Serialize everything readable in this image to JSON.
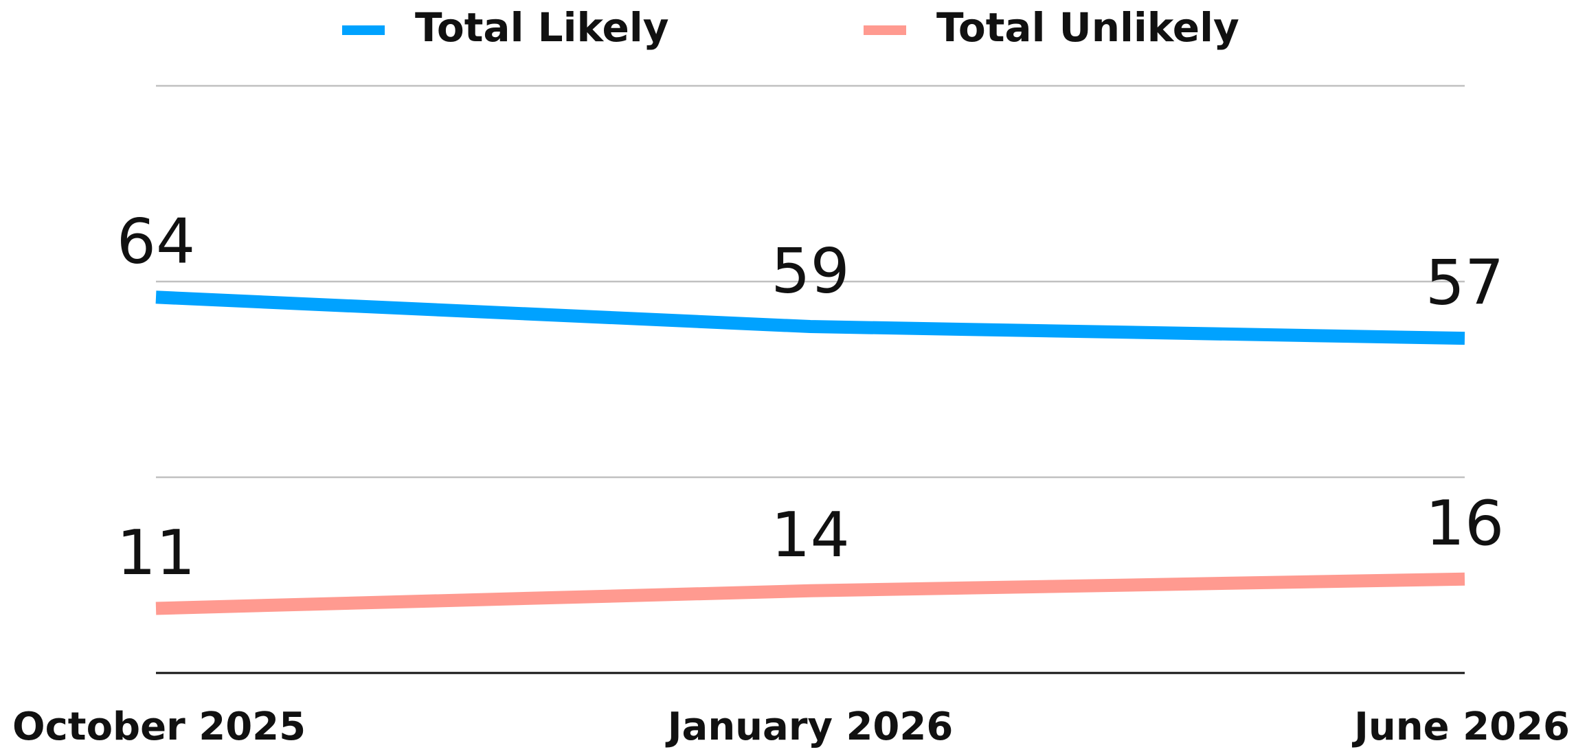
{
  "chart_data": {
    "type": "line",
    "categories": [
      "October 2025",
      "January 2026",
      "June 2026"
    ],
    "series": [
      {
        "name": "Total Likely",
        "color": "#00a2ff",
        "values": [
          64,
          59,
          57
        ]
      },
      {
        "name": "Total Unlikely",
        "color": "#ff9a90",
        "values": [
          11,
          14,
          16
        ]
      }
    ],
    "ylim": [
      0,
      100
    ],
    "yticks": [
      0,
      33.33,
      66.67,
      100
    ],
    "grid": true,
    "legend": "top"
  }
}
